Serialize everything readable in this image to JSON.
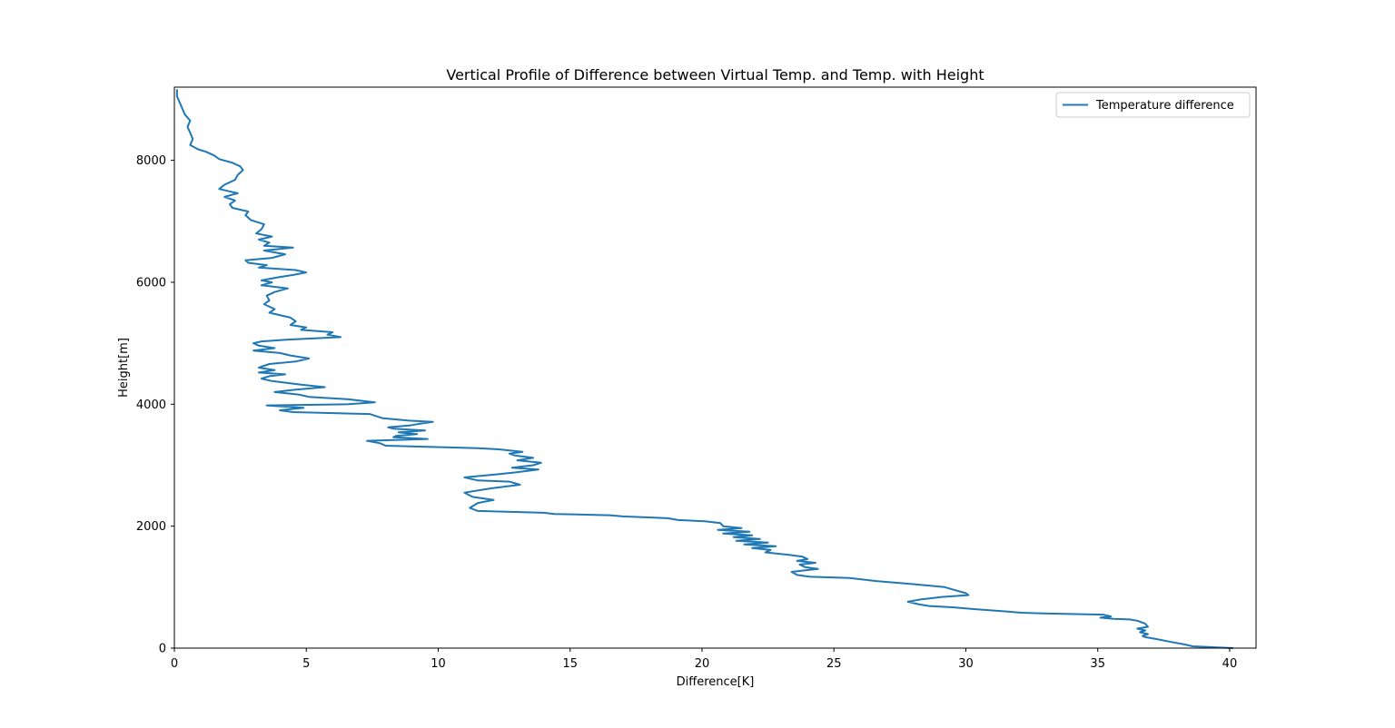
{
  "chart_data": {
    "type": "line",
    "title": "Vertical Profile of Difference between Virtual Temp. and Temp. with Height",
    "xlabel": "Difference[K]",
    "ylabel": "Height[m]",
    "xlim": [
      0,
      41
    ],
    "ylim": [
      0,
      9200
    ],
    "xticks": [
      0,
      5,
      10,
      15,
      20,
      25,
      30,
      35,
      40
    ],
    "yticks": [
      0,
      2000,
      4000,
      6000,
      8000
    ],
    "grid": false,
    "legend_position": "top-right",
    "color": "#1f77b4",
    "series": [
      {
        "name": "Temperature difference",
        "x": [
          40.1,
          38.6,
          38.3,
          37.8,
          37.2,
          36.8,
          36.7,
          36.9,
          36.6,
          36.8,
          36.5,
          36.9,
          36.8,
          36.5,
          36.2,
          35.6,
          35.1,
          35.5,
          35.2,
          32.9,
          32.1,
          31.6,
          30.3,
          29.5,
          28.6,
          28.2,
          27.8,
          28.3,
          29.1,
          30.1,
          30.0,
          29.6,
          29.2,
          28.0,
          26.6,
          25.6,
          24.1,
          23.6,
          23.4,
          24.4,
          23.9,
          23.7,
          24.3,
          23.6,
          24.0,
          23.8,
          23.3,
          22.4,
          22.6,
          21.9,
          22.8,
          21.6,
          22.5,
          21.3,
          22.2,
          21.2,
          21.9,
          20.8,
          21.8,
          20.6,
          21.5,
          20.8,
          20.7,
          20.1,
          19.1,
          18.7,
          17.0,
          16.5,
          14.4,
          14.0,
          11.5,
          11.2,
          11.5,
          12.1,
          11.3,
          11.0,
          12.0,
          13.1,
          12.7,
          11.5,
          11.0,
          12.2,
          12.9,
          13.8,
          12.8,
          13.6,
          13.9,
          13.0,
          13.6,
          12.9,
          12.7,
          13.2,
          12.3,
          11.5,
          9.6,
          8.0,
          7.8,
          7.3,
          9.6,
          8.3,
          8.4,
          9.2,
          8.5,
          9.5,
          8.3,
          8.1,
          8.9,
          9.3,
          9.8,
          8.9,
          7.9,
          7.4,
          4.5,
          4.0,
          4.9,
          3.5,
          6.6,
          7.6,
          6.6,
          5.1,
          4.7,
          3.8,
          4.6,
          5.7,
          4.8,
          3.7,
          3.3,
          3.6,
          4.2,
          3.2,
          3.8,
          3.2,
          3.6,
          4.6,
          5.1,
          4.4,
          4.0,
          3.0,
          3.8,
          3.2,
          3.0,
          3.3,
          4.3,
          6.3,
          5.8,
          6.0,
          4.8,
          5.0,
          4.4,
          4.6,
          4.4,
          3.6,
          3.8,
          3.4,
          3.6,
          3.5,
          3.8,
          4.3,
          3.3,
          3.7,
          3.3,
          3.9,
          4.5,
          5.0,
          4.6,
          3.2,
          3.5,
          2.8,
          2.7,
          3.7,
          4.2,
          3.4,
          4.5,
          3.4,
          3.6,
          3.2,
          3.7,
          3.1,
          3.3,
          3.4,
          2.9,
          2.7,
          2.8,
          2.2,
          2.1,
          2.3,
          1.9,
          2.4,
          1.7,
          1.9,
          2.3,
          2.4,
          2.6,
          2.5,
          2.2,
          1.7,
          1.5,
          1.2,
          0.9,
          0.6,
          0.7,
          0.6,
          0.5,
          0.6,
          0.4,
          0.3,
          0.2,
          0.1,
          0.1
        ],
        "y": [
          0,
          30,
          60,
          100,
          150,
          180,
          200,
          230,
          260,
          290,
          320,
          350,
          400,
          450,
          470,
          480,
          500,
          520,
          550,
          570,
          580,
          600,
          640,
          670,
          690,
          720,
          760,
          800,
          840,
          870,
          900,
          950,
          1000,
          1050,
          1100,
          1150,
          1170,
          1200,
          1250,
          1300,
          1330,
          1370,
          1400,
          1430,
          1460,
          1500,
          1530,
          1570,
          1610,
          1640,
          1670,
          1700,
          1730,
          1760,
          1790,
          1820,
          1850,
          1880,
          1910,
          1940,
          1970,
          2000,
          2050,
          2080,
          2100,
          2130,
          2160,
          2180,
          2200,
          2220,
          2250,
          2300,
          2380,
          2430,
          2480,
          2550,
          2620,
          2680,
          2730,
          2750,
          2800,
          2850,
          2880,
          2930,
          2960,
          3000,
          3040,
          3080,
          3120,
          3160,
          3190,
          3220,
          3260,
          3280,
          3300,
          3320,
          3360,
          3400,
          3430,
          3460,
          3480,
          3510,
          3540,
          3570,
          3600,
          3620,
          3650,
          3680,
          3710,
          3730,
          3770,
          3840,
          3870,
          3900,
          3940,
          3980,
          4000,
          4030,
          4080,
          4120,
          4160,
          4200,
          4240,
          4280,
          4320,
          4380,
          4420,
          4460,
          4490,
          4520,
          4560,
          4600,
          4660,
          4700,
          4750,
          4800,
          4840,
          4880,
          4920,
          4960,
          5000,
          5030,
          5060,
          5100,
          5140,
          5180,
          5220,
          5260,
          5300,
          5360,
          5420,
          5500,
          5560,
          5640,
          5700,
          5780,
          5840,
          5900,
          5950,
          6000,
          6030,
          6080,
          6120,
          6160,
          6200,
          6240,
          6280,
          6320,
          6360,
          6400,
          6460,
          6520,
          6570,
          6600,
          6650,
          6700,
          6750,
          6800,
          6870,
          6950,
          7020,
          7100,
          7160,
          7220,
          7280,
          7340,
          7400,
          7460,
          7530,
          7600,
          7680,
          7760,
          7840,
          7900,
          7960,
          8020,
          8080,
          8140,
          8180,
          8250,
          8350,
          8450,
          8550,
          8650,
          8750,
          8850,
          8950,
          9050,
          9150
        ]
      }
    ]
  }
}
